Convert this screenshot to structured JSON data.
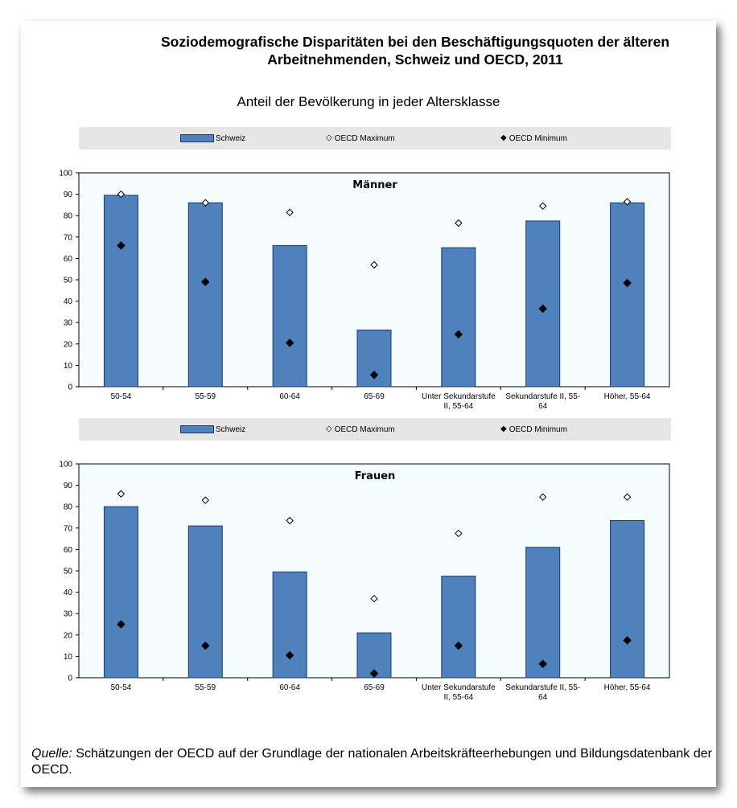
{
  "title": {
    "line1": "Soziodemografische Disparitäten bei den Beschäftigungsquoten der älteren",
    "line2": "Arbeitnehmenden, Schweiz und OECD, 2011"
  },
  "subtitle": "Anteil der Bevölkerung in jeder Altersklasse",
  "legend": {
    "schweiz": "Schweiz",
    "oecd_max": "OECD Maximum",
    "oecd_min": "OECD Minimum"
  },
  "colors": {
    "bar_fill": "#4f81bd",
    "bar_stroke": "#1f3864",
    "plot_bg": "#f4fcfd"
  },
  "source": {
    "label": "Quelle:",
    "text": " Schätzungen der OECD auf der Grundlage der nationalen Arbeitskräfteerhebungen und Bildungsdatenbank der OECD."
  },
  "chart_data": [
    {
      "type": "bar",
      "title": "Männer",
      "categories": [
        "50-54",
        "55-59",
        "60-64",
        "65-69",
        "Unter Sekundarstufe II, 55-64",
        "Sekundarstufe II, 55-64",
        "Höher, 55-64"
      ],
      "category_lines": [
        [
          "50-54"
        ],
        [
          "55-59"
        ],
        [
          "60-64"
        ],
        [
          "65-69"
        ],
        [
          "Unter Sekundarstufe",
          "II, 55-64"
        ],
        [
          "Sekundarstufe II, 55-",
          "64"
        ],
        [
          "Höher, 55-64"
        ]
      ],
      "series": [
        {
          "name": "Schweiz",
          "kind": "bar",
          "values": [
            89.5,
            86,
            66,
            26.5,
            65,
            77.5,
            86
          ]
        },
        {
          "name": "OECD Maximum",
          "kind": "marker-open-diamond",
          "values": [
            90,
            86,
            81.5,
            57,
            76.5,
            84.5,
            86.5
          ]
        },
        {
          "name": "OECD Minimum",
          "kind": "marker-filled-diamond",
          "values": [
            66,
            49,
            20.5,
            5.5,
            24.5,
            36.5,
            48.5
          ]
        }
      ],
      "yticks": [
        0,
        10,
        20,
        30,
        40,
        50,
        60,
        70,
        80,
        90,
        100
      ],
      "ylim": [
        0,
        100
      ],
      "legend_position": "top"
    },
    {
      "type": "bar",
      "title": "Frauen",
      "categories": [
        "50-54",
        "55-59",
        "60-64",
        "65-69",
        "Unter Sekundarstufe II, 55-64",
        "Sekundarstufe II, 55-64",
        "Höher, 55-64"
      ],
      "category_lines": [
        [
          "50-54"
        ],
        [
          "55-59"
        ],
        [
          "60-64"
        ],
        [
          "65-69"
        ],
        [
          "Unter Sekundarstufe",
          "II, 55-64"
        ],
        [
          "Sekundarstufe II, 55-",
          "64"
        ],
        [
          "Höher, 55-64"
        ]
      ],
      "series": [
        {
          "name": "Schweiz",
          "kind": "bar",
          "values": [
            80,
            71,
            49.5,
            21,
            47.5,
            61,
            73.5
          ]
        },
        {
          "name": "OECD Maximum",
          "kind": "marker-open-diamond",
          "values": [
            86,
            83,
            73.5,
            37,
            67.5,
            84.5,
            84.5
          ]
        },
        {
          "name": "OECD Minimum",
          "kind": "marker-filled-diamond",
          "values": [
            25,
            15,
            10.5,
            2,
            15,
            6.5,
            17.5
          ]
        }
      ],
      "yticks": [
        0,
        10,
        20,
        30,
        40,
        50,
        60,
        70,
        80,
        90,
        100
      ],
      "ylim": [
        0,
        100
      ],
      "legend_position": "top"
    }
  ]
}
